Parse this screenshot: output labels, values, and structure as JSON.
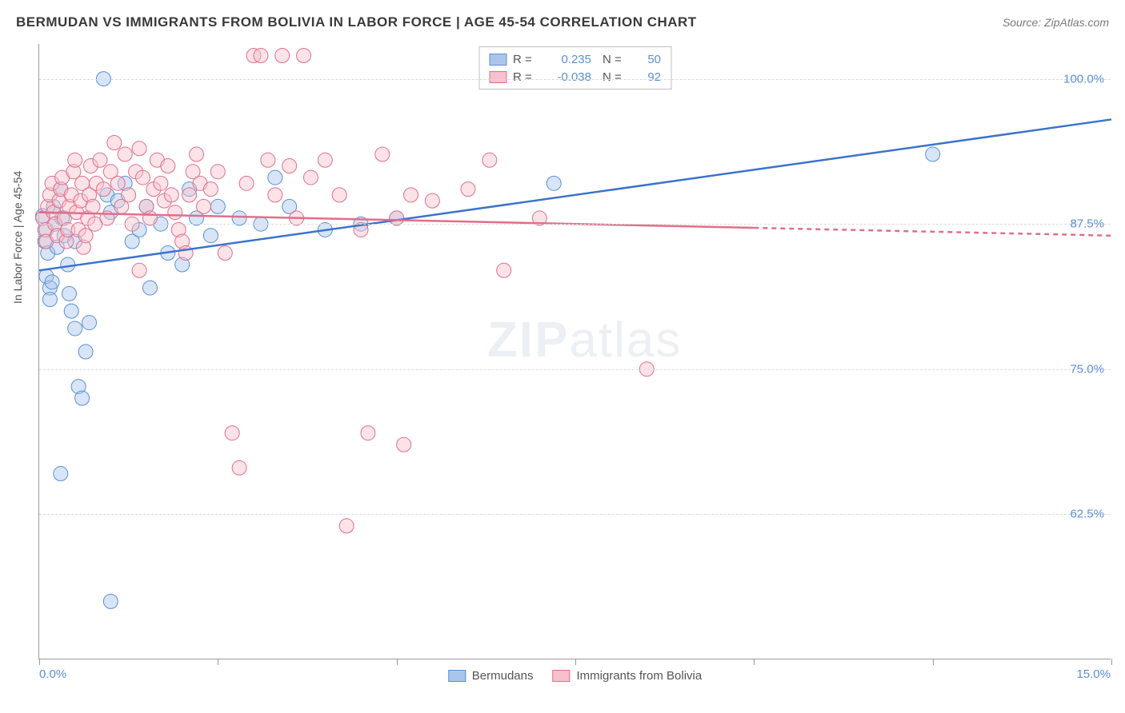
{
  "title": "BERMUDAN VS IMMIGRANTS FROM BOLIVIA IN LABOR FORCE | AGE 45-54 CORRELATION CHART",
  "source": "Source: ZipAtlas.com",
  "y_axis_label": "In Labor Force | Age 45-54",
  "watermark_bold": "ZIP",
  "watermark_rest": "atlas",
  "chart": {
    "type": "scatter",
    "xlim": [
      0,
      15
    ],
    "ylim": [
      50,
      103
    ],
    "x_ticks": [
      0,
      2.5,
      5,
      7.5,
      10,
      12.5,
      15
    ],
    "x_tick_labels_shown": {
      "0": "0.0%",
      "15": "15.0%"
    },
    "y_gridlines": [
      62.5,
      75,
      87.5,
      100
    ],
    "y_tick_labels": {
      "62.5": "62.5%",
      "75": "75.0%",
      "87.5": "87.5%",
      "100": "100.0%"
    },
    "background_color": "#ffffff",
    "grid_color": "#dcdcdc",
    "axis_color": "#9a9a9a",
    "label_color": "#5b8fd6",
    "marker_radius": 9,
    "marker_opacity": 0.45,
    "series": [
      {
        "name": "Bermudans",
        "fill": "#a9c6ea",
        "stroke": "#5b8fd6",
        "line_color": "#3d73c9",
        "line_width": 2.5,
        "r_value": "0.235",
        "n_value": "50",
        "trend": {
          "x1": 0,
          "y1": 83.5,
          "x2": 15,
          "y2": 96.5,
          "dash_from_x": null
        },
        "points": [
          [
            0.05,
            88.2
          ],
          [
            0.08,
            86.0
          ],
          [
            0.1,
            87.0
          ],
          [
            0.12,
            85.0
          ],
          [
            0.1,
            83.0
          ],
          [
            0.15,
            82.0
          ],
          [
            0.2,
            89.0
          ],
          [
            0.22,
            87.5
          ],
          [
            0.25,
            85.5
          ],
          [
            0.3,
            90.5
          ],
          [
            0.32,
            88.0
          ],
          [
            0.35,
            86.5
          ],
          [
            0.4,
            84.0
          ],
          [
            0.42,
            81.5
          ],
          [
            0.45,
            80.0
          ],
          [
            0.5,
            78.5
          ],
          [
            0.55,
            73.5
          ],
          [
            0.6,
            72.5
          ],
          [
            0.65,
            76.5
          ],
          [
            0.7,
            79.0
          ],
          [
            0.3,
            66.0
          ],
          [
            1.0,
            55.0
          ],
          [
            0.15,
            81.0
          ],
          [
            0.18,
            82.5
          ],
          [
            0.9,
            100.0
          ],
          [
            0.95,
            90.0
          ],
          [
            1.0,
            88.5
          ],
          [
            1.1,
            89.5
          ],
          [
            1.2,
            91.0
          ],
          [
            1.3,
            86.0
          ],
          [
            1.4,
            87.0
          ],
          [
            1.5,
            89.0
          ],
          [
            1.55,
            82.0
          ],
          [
            1.7,
            87.5
          ],
          [
            1.8,
            85.0
          ],
          [
            2.0,
            84.0
          ],
          [
            2.1,
            90.5
          ],
          [
            2.2,
            88.0
          ],
          [
            2.4,
            86.5
          ],
          [
            2.5,
            89.0
          ],
          [
            2.8,
            88.0
          ],
          [
            3.1,
            87.5
          ],
          [
            3.3,
            91.5
          ],
          [
            3.5,
            89.0
          ],
          [
            4.0,
            87.0
          ],
          [
            4.5,
            87.5
          ],
          [
            5.0,
            88.0
          ],
          [
            7.2,
            91.0
          ],
          [
            12.5,
            93.5
          ],
          [
            0.5,
            86.0
          ]
        ]
      },
      {
        "name": "Immigrants from Bolivia",
        "fill": "#f6c0cd",
        "stroke": "#e06f8b",
        "line_color": "#e06f8b",
        "line_width": 2.5,
        "r_value": "-0.038",
        "n_value": "92",
        "trend": {
          "x1": 0,
          "y1": 88.5,
          "x2": 15,
          "y2": 86.5,
          "dash_from_x": 10
        },
        "points": [
          [
            0.05,
            88.0
          ],
          [
            0.08,
            87.0
          ],
          [
            0.1,
            86.0
          ],
          [
            0.12,
            89.0
          ],
          [
            0.15,
            90.0
          ],
          [
            0.18,
            91.0
          ],
          [
            0.2,
            88.5
          ],
          [
            0.22,
            87.5
          ],
          [
            0.25,
            86.5
          ],
          [
            0.28,
            89.5
          ],
          [
            0.3,
            90.5
          ],
          [
            0.32,
            91.5
          ],
          [
            0.35,
            88.0
          ],
          [
            0.38,
            86.0
          ],
          [
            0.4,
            87.0
          ],
          [
            0.42,
            89.0
          ],
          [
            0.45,
            90.0
          ],
          [
            0.48,
            92.0
          ],
          [
            0.5,
            93.0
          ],
          [
            0.52,
            88.5
          ],
          [
            0.55,
            87.0
          ],
          [
            0.58,
            89.5
          ],
          [
            0.6,
            91.0
          ],
          [
            0.62,
            85.5
          ],
          [
            0.65,
            86.5
          ],
          [
            0.68,
            88.0
          ],
          [
            0.7,
            90.0
          ],
          [
            0.72,
            92.5
          ],
          [
            0.75,
            89.0
          ],
          [
            0.78,
            87.5
          ],
          [
            0.8,
            91.0
          ],
          [
            0.85,
            93.0
          ],
          [
            0.9,
            90.5
          ],
          [
            0.95,
            88.0
          ],
          [
            1.0,
            92.0
          ],
          [
            1.05,
            94.5
          ],
          [
            1.1,
            91.0
          ],
          [
            1.15,
            89.0
          ],
          [
            1.2,
            93.5
          ],
          [
            1.25,
            90.0
          ],
          [
            1.3,
            87.5
          ],
          [
            1.35,
            92.0
          ],
          [
            1.4,
            94.0
          ],
          [
            1.45,
            91.5
          ],
          [
            1.5,
            89.0
          ],
          [
            1.55,
            88.0
          ],
          [
            1.6,
            90.5
          ],
          [
            1.65,
            93.0
          ],
          [
            1.7,
            91.0
          ],
          [
            1.75,
            89.5
          ],
          [
            1.8,
            92.5
          ],
          [
            1.85,
            90.0
          ],
          [
            1.9,
            88.5
          ],
          [
            1.95,
            87.0
          ],
          [
            2.0,
            86.0
          ],
          [
            2.05,
            85.0
          ],
          [
            2.1,
            90.0
          ],
          [
            2.15,
            92.0
          ],
          [
            2.2,
            93.5
          ],
          [
            2.25,
            91.0
          ],
          [
            2.3,
            89.0
          ],
          [
            2.4,
            90.5
          ],
          [
            2.5,
            92.0
          ],
          [
            2.6,
            85.0
          ],
          [
            2.7,
            69.5
          ],
          [
            2.8,
            66.5
          ],
          [
            2.9,
            91.0
          ],
          [
            3.0,
            102.0
          ],
          [
            3.1,
            102.0
          ],
          [
            3.2,
            93.0
          ],
          [
            3.3,
            90.0
          ],
          [
            3.4,
            102.0
          ],
          [
            3.5,
            92.5
          ],
          [
            3.6,
            88.0
          ],
          [
            3.7,
            102.0
          ],
          [
            3.8,
            91.5
          ],
          [
            4.0,
            93.0
          ],
          [
            4.2,
            90.0
          ],
          [
            4.3,
            61.5
          ],
          [
            4.5,
            87.0
          ],
          [
            4.6,
            69.5
          ],
          [
            4.8,
            93.5
          ],
          [
            5.0,
            88.0
          ],
          [
            5.1,
            68.5
          ],
          [
            5.2,
            90.0
          ],
          [
            5.5,
            89.5
          ],
          [
            6.0,
            90.5
          ],
          [
            6.3,
            93.0
          ],
          [
            6.5,
            83.5
          ],
          [
            7.0,
            88.0
          ],
          [
            8.5,
            75.0
          ],
          [
            1.4,
            83.5
          ]
        ]
      }
    ]
  }
}
